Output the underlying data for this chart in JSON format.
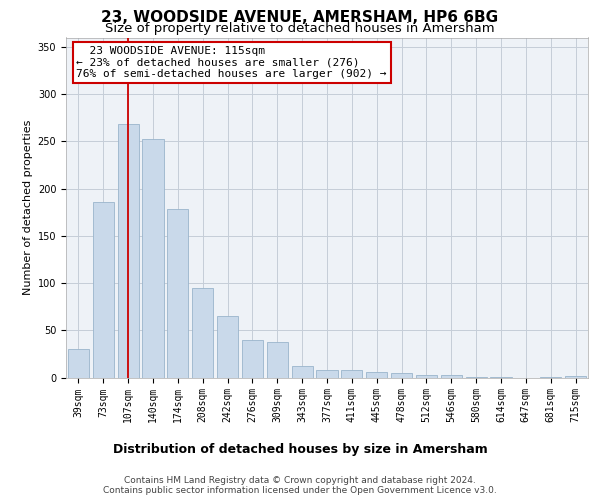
{
  "title": "23, WOODSIDE AVENUE, AMERSHAM, HP6 6BG",
  "subtitle": "Size of property relative to detached houses in Amersham",
  "xlabel": "Distribution of detached houses by size in Amersham",
  "ylabel": "Number of detached properties",
  "bar_color": "#c9d9ea",
  "bar_edge_color": "#9ab5cc",
  "grid_color": "#c5cdd8",
  "background_color": "#eef2f7",
  "vline_color": "#cc0000",
  "vline_x": 2,
  "categories": [
    "39sqm",
    "73sqm",
    "107sqm",
    "140sqm",
    "174sqm",
    "208sqm",
    "242sqm",
    "276sqm",
    "309sqm",
    "343sqm",
    "377sqm",
    "411sqm",
    "445sqm",
    "478sqm",
    "512sqm",
    "546sqm",
    "580sqm",
    "614sqm",
    "647sqm",
    "681sqm",
    "715sqm"
  ],
  "values": [
    30,
    186,
    268,
    252,
    178,
    95,
    65,
    40,
    38,
    12,
    8,
    8,
    6,
    5,
    3,
    3,
    1,
    1,
    0,
    1,
    2
  ],
  "ylim": [
    0,
    360
  ],
  "yticks": [
    0,
    50,
    100,
    150,
    200,
    250,
    300,
    350
  ],
  "annotation_line1": "  23 WOODSIDE AVENUE: 115sqm",
  "annotation_line2": "← 23% of detached houses are smaller (276)",
  "annotation_line3": "76% of semi-detached houses are larger (902) →",
  "footer_line1": "Contains HM Land Registry data © Crown copyright and database right 2024.",
  "footer_line2": "Contains public sector information licensed under the Open Government Licence v3.0.",
  "title_fontsize": 11,
  "subtitle_fontsize": 9.5,
  "xlabel_fontsize": 9,
  "ylabel_fontsize": 8,
  "tick_fontsize": 7,
  "annot_fontsize": 8,
  "footer_fontsize": 6.5
}
